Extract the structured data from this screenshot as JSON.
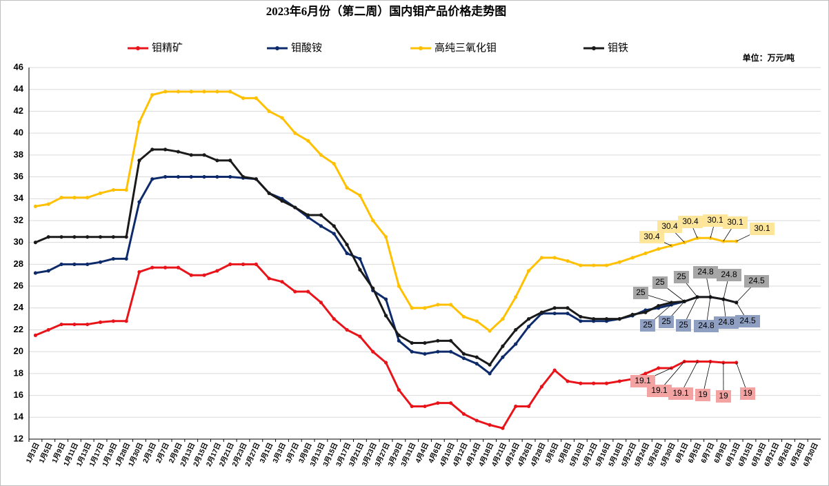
{
  "chart_data": {
    "type": "line",
    "title": "2023年6月份（第二周）国内钼产品价格走势图",
    "unit_label": "单位：万元/吨",
    "categories": [
      "1月3日",
      "1月5日",
      "1月9日",
      "1月11日",
      "1月13日",
      "1月17日",
      "1月19日",
      "1月28日",
      "1月30日",
      "2月3日",
      "2月7日",
      "2月9日",
      "2月13日",
      "2月15日",
      "2月17日",
      "2月21日",
      "2月23日",
      "2月27日",
      "3月1日",
      "3月3日",
      "3月7日",
      "3月9日",
      "3月13日",
      "3月15日",
      "3月17日",
      "3月21日",
      "3月23日",
      "3月27日",
      "3月29日",
      "3月31日",
      "4月4日",
      "4月6日",
      "4月10日",
      "4月12日",
      "4月14日",
      "4月18日",
      "4月21日",
      "4月24日",
      "4月26日",
      "4月28日",
      "5月5日",
      "5月8日",
      "5月10日",
      "5月12日",
      "5月16日",
      "5月18日",
      "5月22日",
      "5月24日",
      "5月26日",
      "5月30日",
      "6月1日",
      "6月5日",
      "6月7日",
      "6月9日",
      "6月13日",
      "6月15日",
      "6月19日",
      "6月21日",
      "6月26日",
      "6月28日",
      "6月30日"
    ],
    "series": [
      {
        "name": "钼精矿",
        "color": "#e8141a",
        "callout_color": "#f4a3a3",
        "values": [
          21.5,
          22.0,
          22.5,
          22.5,
          22.5,
          22.7,
          22.8,
          22.8,
          27.3,
          27.7,
          27.7,
          27.7,
          27.0,
          27.0,
          27.4,
          28.0,
          28.0,
          28.0,
          26.7,
          26.4,
          25.5,
          25.5,
          24.5,
          23.0,
          22.0,
          21.4,
          20.0,
          19.0,
          16.5,
          15.0,
          15.0,
          15.3,
          15.3,
          14.3,
          13.7,
          13.3,
          13.0,
          15.0,
          15.0,
          16.8,
          18.3,
          17.3,
          17.1,
          17.1,
          17.1,
          17.3,
          17.5,
          18.0,
          18.5,
          18.5,
          19.1,
          19.1,
          19.1,
          19.0,
          19.0,
          null,
          null,
          null,
          null,
          null,
          null
        ],
        "callouts": [
          "19.1",
          "19.1",
          "19.1",
          "19",
          "19",
          "19"
        ]
      },
      {
        "name": "钼酸铵",
        "color": "#0d2b6b",
        "callout_color": "#8e9fc2",
        "values": [
          27.2,
          27.4,
          28.0,
          28.0,
          28.0,
          28.2,
          28.5,
          28.5,
          33.7,
          35.8,
          36.0,
          36.0,
          36.0,
          36.0,
          36.0,
          36.0,
          35.9,
          35.8,
          34.5,
          34.0,
          33.2,
          32.3,
          31.5,
          30.8,
          29.0,
          28.5,
          25.6,
          24.8,
          21.0,
          20.0,
          19.8,
          20.0,
          20.0,
          19.4,
          18.9,
          18.0,
          19.5,
          20.7,
          22.3,
          23.5,
          23.5,
          23.5,
          22.8,
          22.8,
          22.8,
          23.0,
          23.3,
          23.8,
          24.0,
          24.3,
          24.6,
          25.0,
          25.0,
          24.8,
          24.5,
          null,
          null,
          null,
          null,
          null,
          null
        ],
        "callouts": [
          "25",
          "25",
          "25",
          "24.8",
          "24.8",
          "24.5"
        ]
      },
      {
        "name": "高纯三氧化钼",
        "color": "#ffc000",
        "callout_color": "#fde59a",
        "values": [
          33.3,
          33.5,
          34.1,
          34.1,
          34.1,
          34.5,
          34.8,
          34.8,
          41.0,
          43.5,
          43.8,
          43.8,
          43.8,
          43.8,
          43.8,
          43.8,
          43.2,
          43.2,
          42.0,
          41.4,
          40.0,
          39.3,
          38.0,
          37.2,
          35.0,
          34.3,
          32.0,
          30.5,
          26.0,
          24.0,
          24.0,
          24.3,
          24.3,
          23.2,
          22.8,
          21.9,
          23.0,
          25.0,
          27.4,
          28.6,
          28.6,
          28.3,
          27.9,
          27.9,
          27.9,
          28.2,
          28.6,
          29.0,
          29.4,
          29.7,
          30.0,
          30.4,
          30.4,
          30.1,
          30.1,
          null,
          null,
          null,
          null,
          null,
          null
        ],
        "callouts": [
          "30.4",
          "30.4",
          "30.4",
          "30.1",
          "30.1",
          "30.1"
        ]
      },
      {
        "name": "钼铁",
        "color": "#1a1a1a",
        "callout_color": "#a6a6a6",
        "values": [
          30.0,
          30.5,
          30.5,
          30.5,
          30.5,
          30.5,
          30.5,
          30.5,
          37.5,
          38.5,
          38.5,
          38.3,
          38.0,
          38.0,
          37.5,
          37.5,
          36.0,
          35.8,
          34.5,
          33.8,
          33.2,
          32.5,
          32.5,
          31.5,
          29.8,
          27.5,
          25.8,
          23.3,
          21.5,
          20.8,
          20.8,
          21.0,
          21.0,
          19.8,
          19.5,
          18.8,
          20.5,
          22.0,
          23.0,
          23.6,
          24.0,
          24.0,
          23.2,
          23.0,
          23.0,
          23.0,
          23.4,
          23.6,
          24.2,
          24.5,
          24.6,
          25.0,
          25.0,
          24.8,
          24.5,
          null,
          null,
          null,
          null,
          null,
          null
        ],
        "callouts": [
          "25",
          "25",
          "25",
          "24.8",
          "24.8",
          "24.5"
        ]
      }
    ],
    "ylim": [
      12,
      46
    ],
    "yticks": [
      12,
      14,
      16,
      18,
      20,
      22,
      24,
      26,
      28,
      30,
      32,
      34,
      36,
      38,
      40,
      42,
      44,
      46
    ],
    "grid": true,
    "legend": "top"
  }
}
